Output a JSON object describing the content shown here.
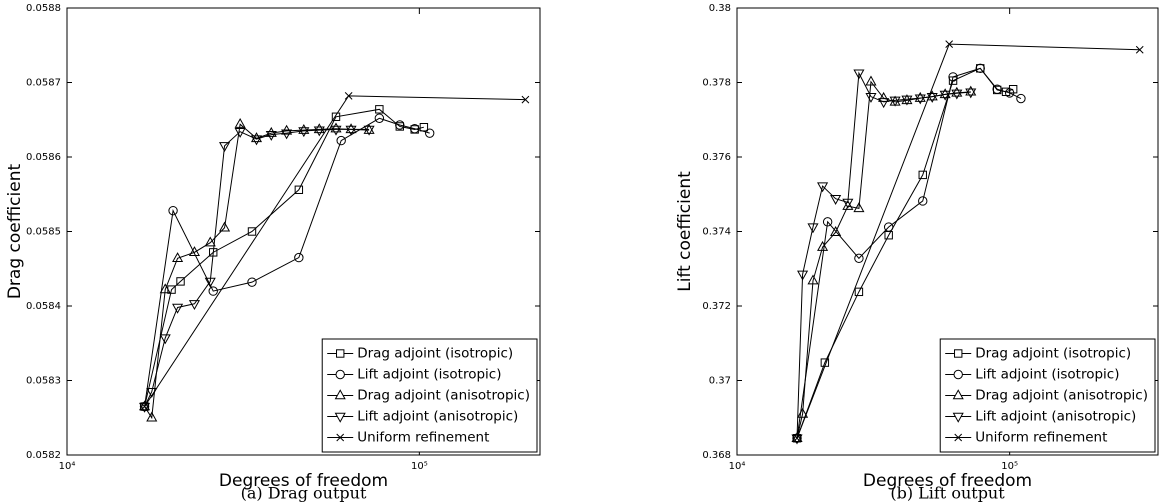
{
  "chart_data": [
    {
      "type": "line",
      "xscale": "log",
      "caption": "(a) Drag output",
      "xlabel": "Degrees of freedom",
      "ylabel": "Drag coefficient",
      "xlim": [
        10000,
        220000
      ],
      "xticks": [
        {
          "value": 10000,
          "label": "10⁴"
        },
        {
          "value": 100000,
          "label": "10⁵"
        }
      ],
      "ylim": [
        0.0582,
        0.0588
      ],
      "yticks": [
        0.0582,
        0.0583,
        0.0584,
        0.0585,
        0.0586,
        0.0587,
        0.0588
      ],
      "legend": "lower right",
      "grid": false,
      "series": [
        {
          "name": "Drag adjoint (isotropic)",
          "color": "#000000",
          "marker": "square",
          "x": [
            16600,
            19800,
            21000,
            26000,
            33500,
            45500,
            58000,
            77000,
            88000,
            97000,
            103000
          ],
          "values": [
            0.058265,
            0.058422,
            0.058433,
            0.058472,
            0.0585,
            0.058556,
            0.058654,
            0.058664,
            0.058641,
            0.058637,
            0.05864
          ]
        },
        {
          "name": "Lift adjoint (isotropic)",
          "color": "#000000",
          "marker": "circle",
          "x": [
            16600,
            20000,
            26000,
            33500,
            45500,
            60000,
            77000,
            88000,
            97000,
            107000
          ],
          "values": [
            0.058265,
            0.058528,
            0.05842,
            0.058432,
            0.058465,
            0.058622,
            0.058652,
            0.058643,
            0.058638,
            0.058632
          ]
        },
        {
          "name": "Drag adjoint (anisotropic)",
          "color": "#000000",
          "marker": "triangle-up",
          "x": [
            16600,
            17400,
            19000,
            20600,
            23000,
            25500,
            28000,
            31000,
            34500,
            38000,
            42000,
            47000,
            52000,
            58000,
            64000,
            72000
          ],
          "values": [
            0.058265,
            0.05825,
            0.058422,
            0.058464,
            0.058472,
            0.058485,
            0.058505,
            0.058644,
            0.058625,
            0.058632,
            0.058635,
            0.058636,
            0.058637,
            0.058638,
            0.058637,
            0.058636
          ]
        },
        {
          "name": "Lift adjoint (anisotropic)",
          "color": "#000000",
          "marker": "triangle-down",
          "x": [
            16600,
            17400,
            19000,
            20600,
            23000,
            25500,
            28000,
            31000,
            34500,
            38000,
            42000,
            47000,
            52000,
            58000,
            64000,
            72000
          ],
          "values": [
            0.058265,
            0.058285,
            0.058357,
            0.058398,
            0.058403,
            0.058433,
            0.058615,
            0.058634,
            0.058624,
            0.05863,
            0.058632,
            0.058635,
            0.058636,
            0.058637,
            0.058637,
            0.058637
          ]
        },
        {
          "name": "Uniform refinement",
          "color": "#000000",
          "marker": "x",
          "x": [
            16600,
            63000,
            200000
          ],
          "values": [
            0.058265,
            0.058682,
            0.058677
          ]
        }
      ]
    },
    {
      "type": "line",
      "xscale": "log",
      "caption": "(b) Lift output",
      "xlabel": "Degrees of freedom",
      "ylabel": "Lift coefficient",
      "xlim": [
        10000,
        350000
      ],
      "xticks": [
        {
          "value": 10000,
          "label": "10⁴"
        },
        {
          "value": 100000,
          "label": "10⁵"
        }
      ],
      "ylim": [
        0.368,
        0.38
      ],
      "yticks": [
        0.368,
        0.37,
        0.372,
        0.374,
        0.376,
        0.378,
        0.38
      ],
      "legend": "lower right",
      "grid": false,
      "series": [
        {
          "name": "Drag adjoint (isotropic)",
          "color": "#000000",
          "marker": "square",
          "x": [
            16600,
            21000,
            28000,
            36000,
            48000,
            62000,
            78000,
            90000,
            97000,
            103000
          ],
          "values": [
            0.36845,
            0.37048,
            0.37238,
            0.3739,
            0.37552,
            0.37805,
            0.37838,
            0.3778,
            0.37775,
            0.37782
          ]
        },
        {
          "name": "Lift adjoint (isotropic)",
          "color": "#000000",
          "marker": "circle",
          "x": [
            16600,
            21500,
            28000,
            36000,
            48000,
            62000,
            78000,
            90000,
            100000,
            110000
          ],
          "values": [
            0.36845,
            0.37426,
            0.37328,
            0.37412,
            0.37482,
            0.37815,
            0.37838,
            0.37782,
            0.37772,
            0.37757
          ]
        },
        {
          "name": "Drag adjoint (anisotropic)",
          "color": "#000000",
          "marker": "triangle-up",
          "x": [
            16600,
            17400,
            19000,
            20600,
            23000,
            25500,
            28000,
            31000,
            34500,
            38000,
            42000,
            47000,
            52000,
            58000,
            64000,
            72000
          ],
          "values": [
            0.36845,
            0.3691,
            0.37268,
            0.37358,
            0.37398,
            0.37468,
            0.37462,
            0.37802,
            0.37758,
            0.37748,
            0.37752,
            0.37758,
            0.37762,
            0.37768,
            0.37772,
            0.37775
          ]
        },
        {
          "name": "Lift adjoint (anisotropic)",
          "color": "#000000",
          "marker": "triangle-down",
          "x": [
            16600,
            17400,
            19000,
            20600,
            23000,
            25500,
            28000,
            31000,
            34500,
            38000,
            42000,
            47000,
            52000,
            58000,
            64000,
            72000
          ],
          "values": [
            0.36845,
            0.37285,
            0.37412,
            0.37522,
            0.37488,
            0.37478,
            0.37825,
            0.37762,
            0.37748,
            0.37752,
            0.37755,
            0.37758,
            0.37762,
            0.37768,
            0.37771,
            0.37774
          ]
        },
        {
          "name": "Uniform refinement",
          "color": "#000000",
          "marker": "x",
          "x": [
            16600,
            60000,
            300000
          ],
          "values": [
            0.36845,
            0.37903,
            0.37888
          ]
        }
      ]
    }
  ]
}
